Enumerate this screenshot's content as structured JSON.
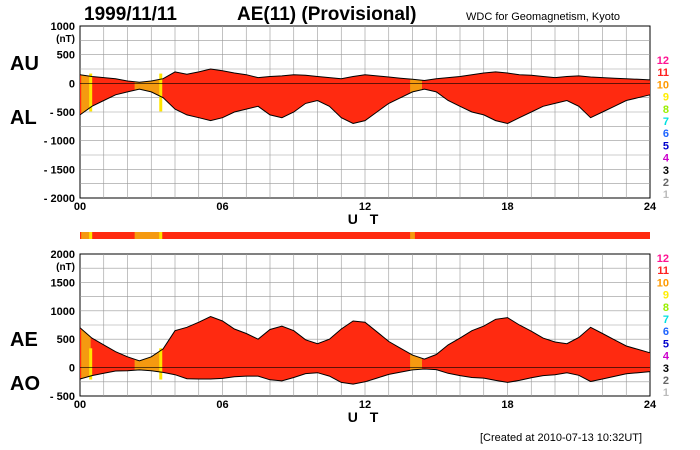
{
  "header": {
    "date": "1999/11/11",
    "title": "AE(11) (Provisional)",
    "source": "WDC for Geomagnetism, Kyoto"
  },
  "footer": {
    "created": "[Created at 2010-07-13 10:32UT]"
  },
  "legend": [
    {
      "label": "12",
      "color": "#ff1493"
    },
    {
      "label": "11",
      "color": "#ff2020"
    },
    {
      "label": "10",
      "color": "#ff9900"
    },
    {
      "label": "9",
      "color": "#ffee00"
    },
    {
      "label": "8",
      "color": "#99ee00"
    },
    {
      "label": "7",
      "color": "#00e0e0"
    },
    {
      "label": "6",
      "color": "#1e64ff"
    },
    {
      "label": "5",
      "color": "#0000cc"
    },
    {
      "label": "4",
      "color": "#cc00cc"
    },
    {
      "label": "3",
      "color": "#000000"
    },
    {
      "label": "2",
      "color": "#666666"
    },
    {
      "label": "1",
      "color": "#bbbbbb"
    }
  ],
  "chart_data": [
    {
      "type": "area",
      "ylabel_top": "AU",
      "ylabel_bottom": "AL",
      "yunit": "(nT)",
      "ylim": [
        -2000,
        1000
      ],
      "yticks": [
        1000,
        500,
        0,
        -500,
        -1000,
        -1500,
        -2000
      ],
      "ytick_labels": [
        "1000",
        "500",
        "0",
        "- 500",
        "- 1000",
        "- 1500",
        "- 2000"
      ],
      "xlim": [
        0,
        24
      ],
      "xticks": [
        "00",
        "06",
        "12",
        "18",
        "24"
      ],
      "xlabel": "U T",
      "x": [
        0,
        0.5,
        1,
        1.5,
        2,
        2.5,
        3,
        3.5,
        4,
        4.5,
        5,
        5.5,
        6,
        6.5,
        7,
        7.5,
        8,
        8.5,
        9,
        9.5,
        10,
        10.5,
        11,
        11.5,
        12,
        12.5,
        13,
        13.5,
        14,
        14.5,
        15,
        15.5,
        16,
        16.5,
        17,
        17.5,
        18,
        18.5,
        19,
        19.5,
        20,
        20.5,
        21,
        21.5,
        22,
        22.5,
        23,
        23.5,
        24
      ],
      "series": [
        {
          "name": "AU",
          "values": [
            150,
            120,
            100,
            80,
            40,
            20,
            40,
            80,
            200,
            160,
            200,
            250,
            220,
            180,
            150,
            100,
            120,
            130,
            150,
            140,
            120,
            100,
            80,
            120,
            150,
            130,
            110,
            90,
            70,
            50,
            80,
            100,
            120,
            150,
            180,
            200,
            180,
            150,
            140,
            120,
            100,
            120,
            130,
            110,
            100,
            90,
            80,
            70,
            60
          ]
        },
        {
          "name": "AL",
          "values": [
            -550,
            -400,
            -300,
            -200,
            -150,
            -100,
            -150,
            -250,
            -450,
            -550,
            -600,
            -650,
            -600,
            -500,
            -450,
            -400,
            -550,
            -600,
            -500,
            -350,
            -300,
            -400,
            -600,
            -700,
            -650,
            -500,
            -350,
            -250,
            -150,
            -100,
            -150,
            -300,
            -400,
            -500,
            -550,
            -650,
            -700,
            -600,
            -500,
            -400,
            -350,
            -300,
            -400,
            -600,
            -500,
            -400,
            -300,
            -250,
            -200
          ]
        }
      ]
    },
    {
      "type": "area",
      "ylabel_top": "AE",
      "ylabel_bottom": "AO",
      "yunit": "(nT)",
      "ylim": [
        -500,
        2000
      ],
      "yticks": [
        2000,
        1500,
        1000,
        500,
        0,
        -500
      ],
      "ytick_labels": [
        "2000",
        "1500",
        "1000",
        "500",
        "0",
        "- 500"
      ],
      "xlim": [
        0,
        24
      ],
      "xticks": [
        "00",
        "06",
        "12",
        "18",
        "24"
      ],
      "xlabel": "U T",
      "x": [
        0,
        0.5,
        1,
        1.5,
        2,
        2.5,
        3,
        3.5,
        4,
        4.5,
        5,
        5.5,
        6,
        6.5,
        7,
        7.5,
        8,
        8.5,
        9,
        9.5,
        10,
        10.5,
        11,
        11.5,
        12,
        12.5,
        13,
        13.5,
        14,
        14.5,
        15,
        15.5,
        16,
        16.5,
        17,
        17.5,
        18,
        18.5,
        19,
        19.5,
        20,
        20.5,
        21,
        21.5,
        22,
        22.5,
        23,
        23.5,
        24
      ],
      "series": [
        {
          "name": "AE",
          "values": [
            700,
            520,
            400,
            280,
            190,
            120,
            190,
            330,
            650,
            710,
            800,
            900,
            820,
            680,
            600,
            500,
            670,
            730,
            650,
            490,
            420,
            500,
            680,
            820,
            800,
            630,
            460,
            340,
            220,
            150,
            230,
            400,
            520,
            650,
            730,
            850,
            880,
            750,
            640,
            520,
            450,
            420,
            530,
            710,
            600,
            490,
            380,
            320,
            260
          ]
        },
        {
          "name": "AO",
          "values": [
            -200,
            -140,
            -100,
            -60,
            -55,
            -40,
            -55,
            -85,
            -125,
            -195,
            -200,
            -200,
            -190,
            -160,
            -150,
            -150,
            -215,
            -235,
            -175,
            -105,
            -90,
            -150,
            -260,
            -290,
            -250,
            -185,
            -120,
            -80,
            -40,
            -25,
            -35,
            -100,
            -140,
            -175,
            -185,
            -225,
            -260,
            -225,
            -180,
            -140,
            -125,
            -90,
            -135,
            -245,
            -200,
            -155,
            -110,
            -90,
            -70
          ]
        }
      ]
    }
  ]
}
